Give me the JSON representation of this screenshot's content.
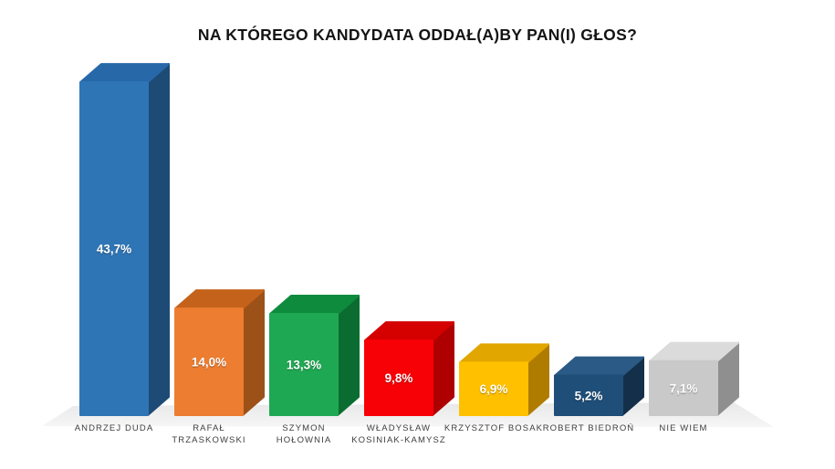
{
  "chart_data": {
    "type": "bar",
    "style": "3d-column",
    "title": "NA KTÓREGO KANDYDATA ODDAŁ(A)BY PAN(I) GŁOS?",
    "xlabel": "",
    "ylabel": "",
    "ylim": [
      0,
      47
    ],
    "grid": false,
    "legend": "none",
    "background_color": "#FFFFFF",
    "floor_colors": [
      "#E8E8E8",
      "#F6F6F6"
    ],
    "categories": [
      "ANDRZEJ DUDA",
      "RAFAŁ TRZASKOWSKI",
      "SZYMON HOŁOWNIA",
      "WŁADYSŁAW KOSINIAK-KAMYSZ",
      "KRZYSZTOF BOSAK",
      "ROBERT BIEDROŃ",
      "NIE WIEM"
    ],
    "category_lines": [
      [
        "ANDRZEJ DUDA"
      ],
      [
        "RAFAŁ",
        "TRZASKOWSKI"
      ],
      [
        "SZYMON",
        "HOŁOWNIA"
      ],
      [
        "WŁADYSŁAW",
        "KOSINIAK-KAMYSZ"
      ],
      [
        "KRZYSZTOF BOSAK"
      ],
      [
        "ROBERT BIEDROŃ"
      ],
      [
        "NIE WIEM"
      ]
    ],
    "values": [
      43.7,
      14.0,
      13.3,
      9.8,
      6.9,
      5.2,
      7.1
    ],
    "value_labels": [
      "43,7%",
      "14,0%",
      "13,3%",
      "9,8%",
      "6,9%",
      "5,2%",
      "7,1%"
    ],
    "bar_colors": [
      {
        "front": "#2E75B6",
        "top": "#2768A9",
        "side": "#1D4B76"
      },
      {
        "front": "#ED7D31",
        "top": "#C4621B",
        "side": "#9C5118"
      },
      {
        "front": "#1FA853",
        "top": "#0F8B3E",
        "side": "#0A6C30"
      },
      {
        "front": "#F70006",
        "top": "#D50000",
        "side": "#AE0000"
      },
      {
        "front": "#FFC000",
        "top": "#E2A600",
        "side": "#B07C00"
      },
      {
        "front": "#1F4E79",
        "top": "#2A5A85",
        "side": "#142F49"
      },
      {
        "front": "#C9C9C9",
        "top": "#DBDBDB",
        "side": "#8F8F8F"
      }
    ]
  }
}
